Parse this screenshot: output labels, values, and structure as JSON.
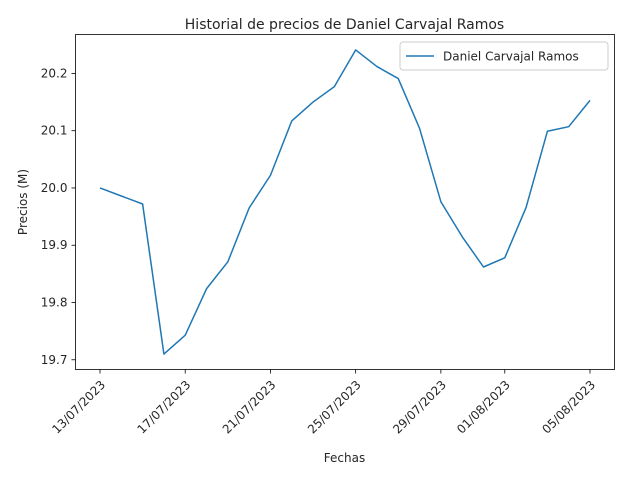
{
  "chart_data": {
    "type": "line",
    "title": "Historial de precios de Daniel Carvajal Ramos",
    "xlabel": "Fechas",
    "ylabel": "Precios (M)",
    "x_ticks": [
      "13/07/2023",
      "17/07/2023",
      "21/07/2023",
      "25/07/2023",
      "29/07/2023",
      "01/08/2023",
      "05/08/2023"
    ],
    "y_ticks": [
      "19.7",
      "19.8",
      "19.9",
      "20.0",
      "20.1",
      "20.2"
    ],
    "ylim": [
      19.683,
      20.268
    ],
    "legend": {
      "position": "top-right"
    },
    "grid": false,
    "series": [
      {
        "name": "Daniel Carvajal Ramos",
        "color": "#1f77b4",
        "x": [
          "13/07/2023",
          "14/07/2023",
          "15/07/2023",
          "16/07/2023",
          "17/07/2023",
          "18/07/2023",
          "19/07/2023",
          "20/07/2023",
          "21/07/2023",
          "22/07/2023",
          "23/07/2023",
          "24/07/2023",
          "25/07/2023",
          "26/07/2023",
          "27/07/2023",
          "28/07/2023",
          "29/07/2023",
          "30/07/2023",
          "31/07/2023",
          "01/08/2023",
          "02/08/2023",
          "03/08/2023",
          "04/08/2023",
          "05/08/2023"
        ],
        "values": [
          20.0,
          19.986,
          19.972,
          19.71,
          19.743,
          19.824,
          19.871,
          19.965,
          20.022,
          20.117,
          20.15,
          20.177,
          20.241,
          20.212,
          20.191,
          20.104,
          19.976,
          19.915,
          19.862,
          19.878,
          19.966,
          20.099,
          20.107,
          20.153
        ]
      }
    ]
  }
}
